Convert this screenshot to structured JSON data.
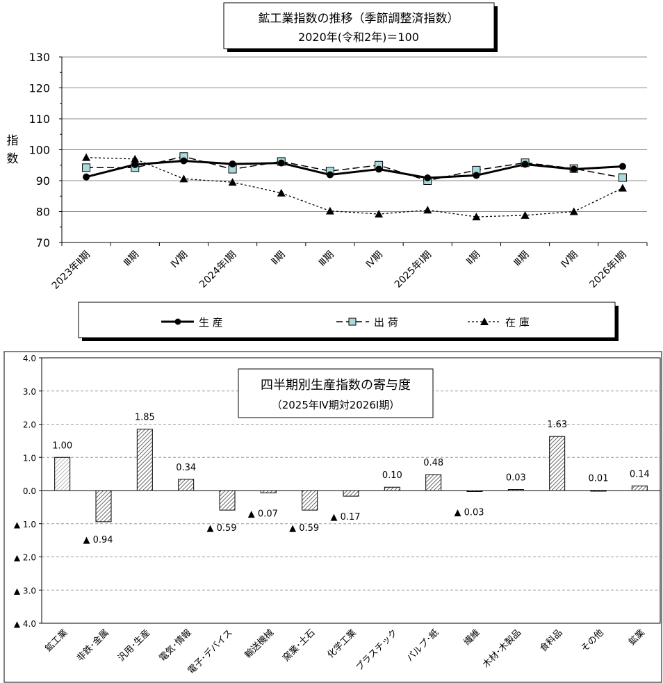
{
  "chart_data": [
    {
      "type": "line",
      "title": "鉱工業指数の推移（季節調整済指数）",
      "subtitle": "2020年(令和2年)＝100",
      "ylabel": "指数",
      "ylim": [
        70,
        130
      ],
      "yticks": [
        "70",
        "80",
        "90",
        "100",
        "110",
        "120",
        "130"
      ],
      "categories": [
        "2023年Ⅱ期",
        "Ⅲ期",
        "Ⅳ期",
        "2024年Ⅰ期",
        "Ⅱ期",
        "Ⅲ期",
        "Ⅳ期",
        "2025年Ⅰ期",
        "Ⅱ期",
        "Ⅲ期",
        "Ⅳ期",
        "2026年Ⅰ期"
      ],
      "grid": true,
      "legend_position": "bottom",
      "series": [
        {
          "name": "生 産",
          "style": "thick-solid-circle",
          "values": [
            91.2,
            95.2,
            96.4,
            95.4,
            95.7,
            91.9,
            93.7,
            90.9,
            91.7,
            95.3,
            93.7,
            94.6
          ]
        },
        {
          "name": "出 荷",
          "style": "dash-square",
          "values": [
            94.2,
            94.2,
            97.8,
            93.7,
            96.2,
            93.1,
            95.0,
            90.0,
            93.4,
            95.8,
            93.9,
            91.0
          ]
        },
        {
          "name": "在 庫",
          "style": "dotted-triangle",
          "values": [
            97.5,
            97.0,
            90.6,
            89.5,
            86.0,
            80.2,
            79.2,
            80.5,
            78.3,
            78.8,
            80.0,
            87.6
          ]
        }
      ]
    },
    {
      "type": "bar",
      "title": "四半期別生産指数の寄与度",
      "subtitle": "（2025年Ⅳ期対2026Ⅰ期）",
      "ylim": [
        -4.0,
        4.0
      ],
      "yticks": [
        "▲ 4.0",
        "▲ 3.0",
        "▲ 2.0",
        "▲ 1.0",
        "0.0",
        "1.0",
        "2.0",
        "3.0",
        "4.0"
      ],
      "categories": [
        "鉱工業",
        "非鉄･金属",
        "汎用･生産",
        "電気･情報",
        "電子･デバイス",
        "輸送機械",
        "窯業･土石",
        "化学工業",
        "プラスチック",
        "パルプ･紙",
        "繊維",
        "木材･木製品",
        "食料品",
        "その他",
        "鉱業"
      ],
      "values": [
        1.0,
        -0.94,
        1.85,
        0.34,
        -0.59,
        -0.07,
        -0.59,
        -0.17,
        0.1,
        0.48,
        -0.03,
        0.03,
        1.63,
        0.01,
        0.14
      ],
      "value_labels": [
        "1.00",
        "▲ 0.94",
        "1.85",
        "0.34",
        "▲ 0.59",
        "▲ 0.07",
        "▲ 0.59",
        "▲ 0.17",
        "0.10",
        "0.48",
        "▲ 0.03",
        "0.03",
        "1.63",
        "0.01",
        "0.14"
      ],
      "grid": true
    }
  ]
}
